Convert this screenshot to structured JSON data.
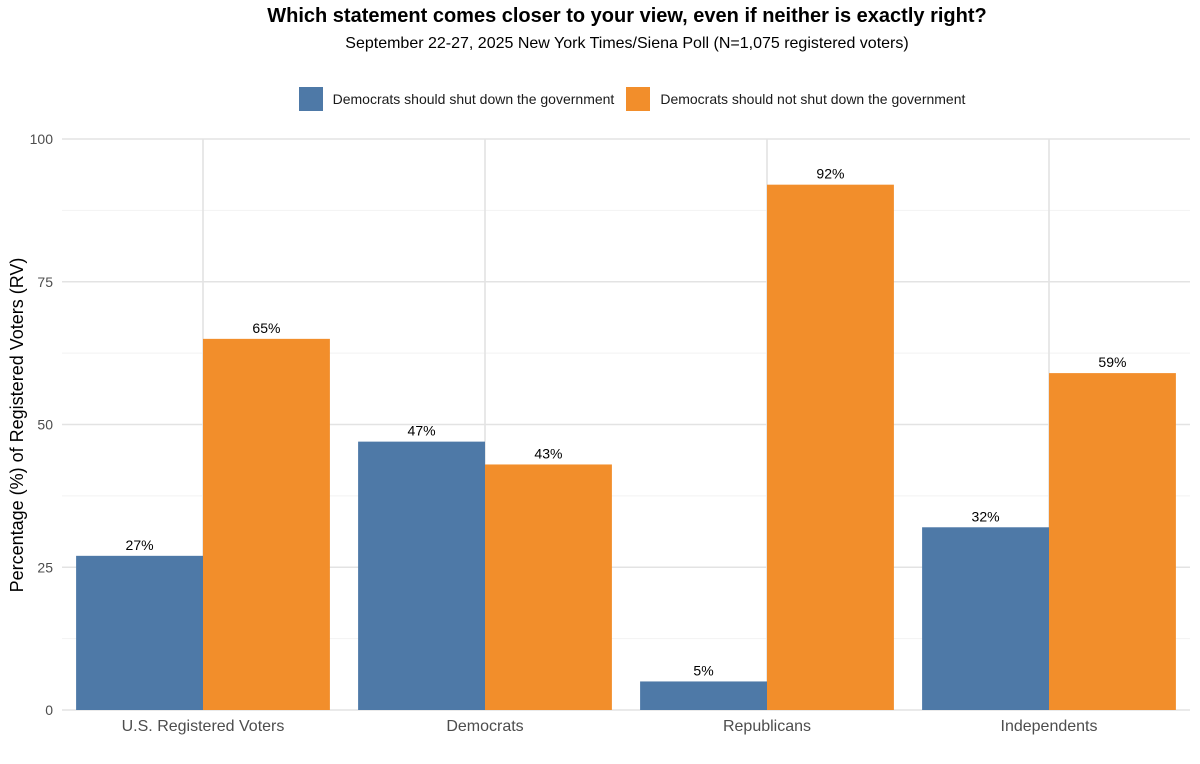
{
  "chart_data": {
    "type": "bar",
    "title": "Which statement comes closer to your view, even if neither is exactly right?",
    "subtitle": "September 22-27, 2025 New York Times/Siena Poll (N=1,075 registered voters)",
    "xlabel": "",
    "ylabel": "Percentage (%) of Registered Voters (RV)",
    "ylim": [
      0,
      100
    ],
    "yticks": [
      0,
      25,
      50,
      75,
      100
    ],
    "grid": true,
    "legend_position": "top",
    "categories": [
      "U.S. Registered Voters",
      "Democrats",
      "Republicans",
      "Independents"
    ],
    "series": [
      {
        "name": "Democrats should shut down the government",
        "color": "#4e79a7",
        "values": [
          27,
          47,
          5,
          32
        ],
        "labels": [
          "27%",
          "47%",
          "5%",
          "32%"
        ]
      },
      {
        "name": "Democrats should not shut down the government",
        "color": "#f28e2b",
        "values": [
          65,
          43,
          92,
          59
        ],
        "labels": [
          "65%",
          "43%",
          "92%",
          "59%"
        ]
      }
    ]
  }
}
